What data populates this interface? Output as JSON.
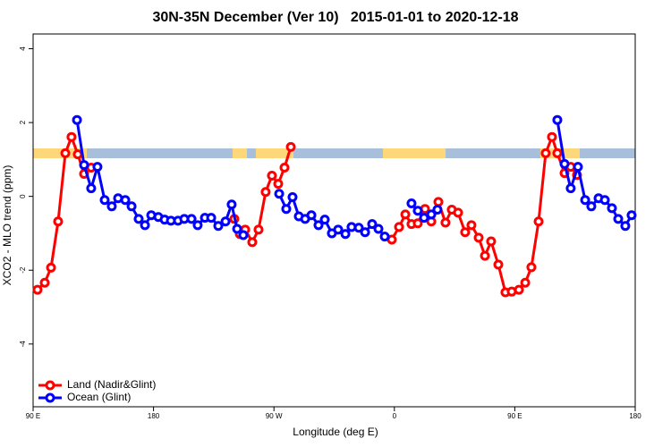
{
  "chart_data": {
    "type": "line",
    "title": "30N-35N December (Ver 10)   2015-01-01 to 2020-12-18",
    "xlabel": "Longitude (deg E)",
    "ylabel": "XCO2 - MLO trend (ppm)",
    "xlim": [
      90,
      540
    ],
    "ylim": [
      -5.7,
      4.4
    ],
    "xticks": [
      {
        "value": 90,
        "label": "90 E"
      },
      180,
      {
        "value": 270,
        "label": "90 W"
      },
      {
        "value": 360,
        "label": "0"
      },
      {
        "value": 450,
        "label": "90 E"
      },
      {
        "value": 540,
        "label": "180"
      }
    ],
    "yticks": [
      -4,
      -2,
      0,
      2,
      4
    ],
    "legend": "bottom-left",
    "series": [
      {
        "name": "Land (Nadir&Glint)",
        "color": "#ff0000",
        "x": [
          93.3,
          98.7,
          103.4,
          108.7,
          114.1,
          118.7,
          123.4,
          128.1,
          133.4,
          null,
          240.4,
          244.5,
          248.5,
          253.8,
          258.5,
          263.8,
          268.5,
          273.2,
          277.9,
          282.6,
          null,
          358.1,
          363.5,
          368.2,
          372.8,
          377.5,
          382.9,
          387.6,
          392.9,
          398.2,
          402.9,
          407.6,
          412.9,
          417.6,
          423.0,
          427.7,
          432.3,
          437.7,
          443.0,
          447.7,
          453.1,
          457.8,
          462.4,
          467.8,
          473.1,
          477.8,
          481.8,
          487.2,
          491.8,
          496.5
        ],
        "values": [
          -2.53,
          -2.34,
          -1.93,
          -0.68,
          1.17,
          1.61,
          1.14,
          0.61,
          0.78,
          null,
          -0.61,
          -1.02,
          -0.9,
          -1.24,
          -0.9,
          0.12,
          0.56,
          0.34,
          0.78,
          1.34,
          null,
          -1.17,
          -0.83,
          -0.49,
          -0.75,
          -0.73,
          -0.34,
          -0.68,
          -0.15,
          -0.71,
          -0.36,
          -0.44,
          -0.97,
          -0.78,
          -1.12,
          -1.61,
          -1.22,
          -1.85,
          -2.6,
          -2.58,
          -2.53,
          -2.34,
          -1.92,
          -0.68,
          1.17,
          1.61,
          1.17,
          0.63,
          0.8,
          0.58
        ]
      },
      {
        "name": "Ocean (Glint)",
        "color": "#0000ff",
        "x": [
          122.8,
          128.1,
          133.4,
          138.1,
          143.5,
          148.8,
          153.5,
          158.9,
          163.6,
          168.9,
          173.6,
          178.3,
          183.6,
          188.3,
          193.0,
          198.3,
          203.0,
          208.4,
          213.0,
          218.4,
          223.1,
          228.4,
          233.8,
          238.4,
          242.5,
          247.1,
          null,
          273.9,
          279.2,
          283.9,
          288.6,
          293.3,
          298.0,
          303.3,
          308.0,
          313.3,
          318.0,
          323.4,
          328.0,
          333.4,
          338.1,
          343.4,
          348.1,
          352.8,
          null,
          372.8,
          377.5,
          382.2,
          387.6,
          392.2,
          null,
          481.8,
          487.2,
          491.8,
          497.2,
          502.6,
          507.2,
          512.6,
          517.3,
          522.6,
          527.3,
          532.6,
          537.3
        ],
        "values": [
          2.07,
          0.85,
          0.22,
          0.8,
          -0.1,
          -0.27,
          -0.05,
          -0.1,
          -0.27,
          -0.61,
          -0.78,
          -0.51,
          -0.56,
          -0.63,
          -0.66,
          -0.66,
          -0.61,
          -0.61,
          -0.78,
          -0.58,
          -0.58,
          -0.8,
          -0.68,
          -0.22,
          -0.88,
          -1.05,
          null,
          0.07,
          -0.34,
          -0.02,
          -0.54,
          -0.61,
          -0.51,
          -0.78,
          -0.63,
          -1.0,
          -0.9,
          -1.02,
          -0.83,
          -0.85,
          -0.97,
          -0.75,
          -0.88,
          -1.09,
          null,
          -0.19,
          -0.39,
          -0.58,
          -0.49,
          -0.36,
          null,
          2.07,
          0.88,
          0.22,
          0.8,
          -0.1,
          -0.27,
          -0.05,
          -0.1,
          -0.32,
          -0.61,
          -0.8,
          -0.51
        ]
      }
    ]
  }
}
